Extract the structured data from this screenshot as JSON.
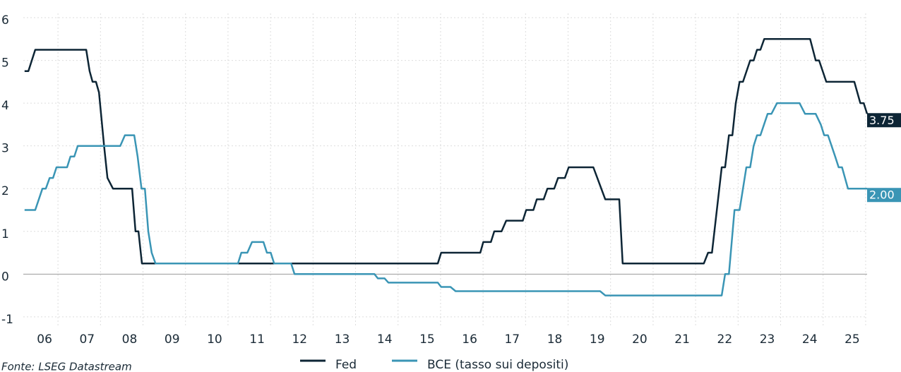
{
  "chart_data": {
    "type": "line",
    "source": "Fonte: LSEG Datastream",
    "xlim": [
      2006.0,
      2025.85
    ],
    "xticks": [
      {
        "value": 2006.5,
        "label": "06"
      },
      {
        "value": 2007.5,
        "label": "07"
      },
      {
        "value": 2008.5,
        "label": "08"
      },
      {
        "value": 2009.5,
        "label": "09"
      },
      {
        "value": 2010.5,
        "label": "10"
      },
      {
        "value": 2011.5,
        "label": "11"
      },
      {
        "value": 2012.5,
        "label": "12"
      },
      {
        "value": 2013.5,
        "label": "13"
      },
      {
        "value": 2014.5,
        "label": "14"
      },
      {
        "value": 2015.5,
        "label": "15"
      },
      {
        "value": 2016.5,
        "label": "16"
      },
      {
        "value": 2017.5,
        "label": "17"
      },
      {
        "value": 2018.5,
        "label": "18"
      },
      {
        "value": 2019.5,
        "label": "19"
      },
      {
        "value": 2020.5,
        "label": "20"
      },
      {
        "value": 2021.5,
        "label": "21"
      },
      {
        "value": 2022.5,
        "label": "22"
      },
      {
        "value": 2023.5,
        "label": "23"
      },
      {
        "value": 2024.5,
        "label": "24"
      },
      {
        "value": 2025.5,
        "label": "25"
      }
    ],
    "ylim": [
      -1.25,
      6.1
    ],
    "yticks": [
      -1,
      0,
      1,
      2,
      3,
      4,
      5,
      6
    ],
    "grid": true,
    "legend": "bottom",
    "series": [
      {
        "name": "Fed",
        "color": "#0d2535",
        "value_label": "3.75",
        "x": [
          2006.03,
          2006.12,
          2006.28,
          2007.48,
          2007.56,
          2007.63,
          2007.71,
          2007.78,
          2007.9,
          2007.98,
          2008.11,
          2008.56,
          2008.64,
          2008.71,
          2008.79,
          2015.75,
          2015.83,
          2016.75,
          2016.82,
          2017.0,
          2017.08,
          2017.25,
          2017.36,
          2017.75,
          2017.83,
          2018.0,
          2018.08,
          2018.24,
          2018.33,
          2018.49,
          2018.58,
          2018.74,
          2018.83,
          2019.41,
          2019.69,
          2020.02,
          2020.1,
          2022.01,
          2022.11,
          2022.2,
          2022.43,
          2022.51,
          2022.6,
          2022.68,
          2022.76,
          2022.85,
          2022.93,
          2023.1,
          2023.18,
          2023.26,
          2023.34,
          2023.43,
          2024.51,
          2024.64,
          2024.72,
          2024.89,
          2025.55,
          2025.69,
          2025.77,
          2025.85
        ],
        "values": [
          4.75,
          4.75,
          5.25,
          5.25,
          4.75,
          4.5,
          4.5,
          4.25,
          3.0,
          2.25,
          2.0,
          2.0,
          1.0,
          1.0,
          0.25,
          0.25,
          0.5,
          0.5,
          0.75,
          0.75,
          1.0,
          1.0,
          1.25,
          1.25,
          1.5,
          1.5,
          1.75,
          1.75,
          2.0,
          2.0,
          2.25,
          2.25,
          2.5,
          2.5,
          1.75,
          1.75,
          0.25,
          0.25,
          0.5,
          0.5,
          2.5,
          2.5,
          3.25,
          3.25,
          4.0,
          4.5,
          4.5,
          5.0,
          5.0,
          5.25,
          5.25,
          5.5,
          5.5,
          5.0,
          5.0,
          4.5,
          4.5,
          4.0,
          4.0,
          3.75
        ]
      },
      {
        "name": "BCE (tasso sui depositi)",
        "color": "#3a95b5",
        "value_label": "2.00",
        "x": [
          2006.03,
          2006.28,
          2006.45,
          2006.53,
          2006.62,
          2006.7,
          2006.78,
          2007.03,
          2007.11,
          2007.2,
          2007.28,
          2008.28,
          2008.39,
          2008.61,
          2008.69,
          2008.78,
          2008.86,
          2008.94,
          2009.02,
          2009.11,
          2011.05,
          2011.13,
          2011.27,
          2011.38,
          2011.65,
          2011.73,
          2011.82,
          2011.9,
          2012.3,
          2012.38,
          2014.26,
          2014.34,
          2014.5,
          2014.59,
          2015.75,
          2015.83,
          2016.05,
          2016.17,
          2019.57,
          2019.69,
          2022.43,
          2022.51,
          2022.6,
          2022.73,
          2022.85,
          2023.01,
          2023.1,
          2023.18,
          2023.26,
          2023.34,
          2023.51,
          2023.6,
          2023.73,
          2024.26,
          2024.39,
          2024.64,
          2024.76,
          2024.84,
          2024.93,
          2025.1,
          2025.18,
          2025.26,
          2025.4,
          2025.85
        ],
        "values": [
          1.5,
          1.5,
          2.0,
          2.0,
          2.25,
          2.25,
          2.5,
          2.5,
          2.75,
          2.75,
          3.0,
          3.0,
          3.25,
          3.25,
          2.75,
          2.0,
          2.0,
          1.0,
          0.5,
          0.25,
          0.25,
          0.5,
          0.5,
          0.75,
          0.75,
          0.5,
          0.5,
          0.25,
          0.25,
          0.0,
          0.0,
          -0.1,
          -0.1,
          -0.2,
          -0.2,
          -0.3,
          -0.3,
          -0.4,
          -0.4,
          -0.5,
          -0.5,
          0.0,
          0.0,
          1.5,
          1.5,
          2.5,
          2.5,
          3.0,
          3.25,
          3.25,
          3.75,
          3.75,
          4.0,
          4.0,
          3.75,
          3.75,
          3.5,
          3.25,
          3.25,
          2.75,
          2.5,
          2.5,
          2.0,
          2.0
        ]
      }
    ]
  }
}
